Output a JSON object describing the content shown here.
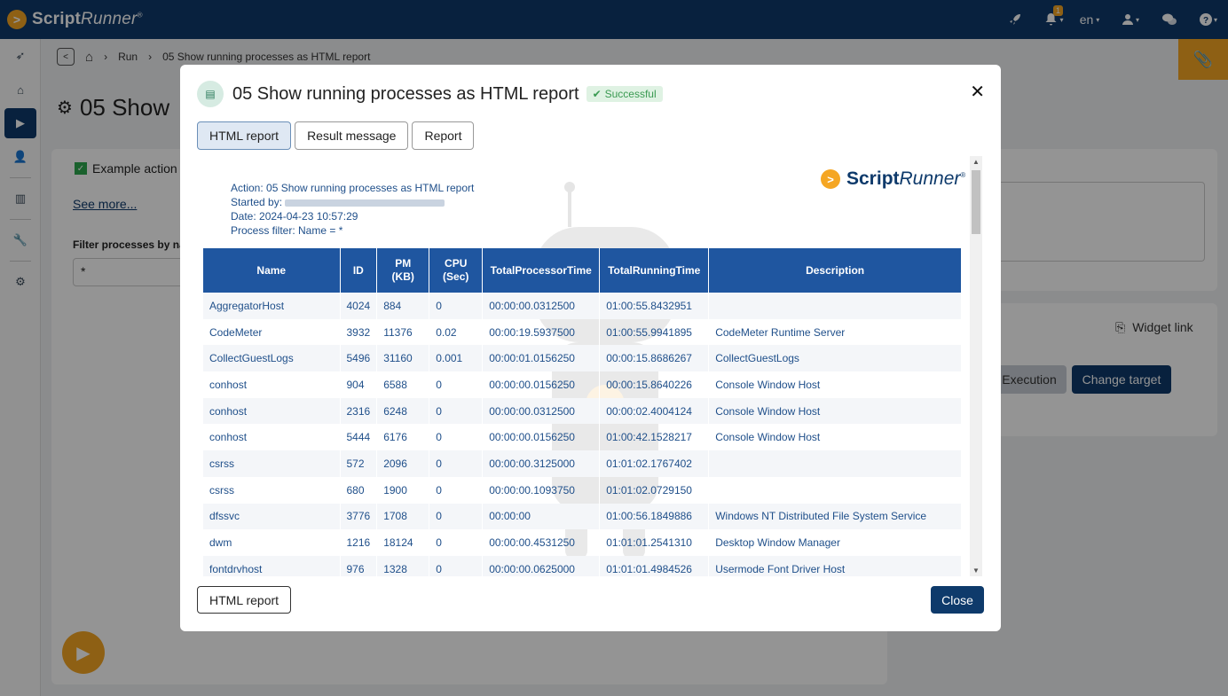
{
  "app": {
    "brand_script": "Script",
    "brand_runner": "Runner",
    "brand_reg": "®"
  },
  "topbar": {
    "notif_count": "1",
    "lang": "en",
    "icons": [
      "rocket-icon",
      "bell-icon",
      "user-icon",
      "chat-icon",
      "help-icon"
    ]
  },
  "sidebar": {
    "items": [
      "rocket-icon",
      "home-icon",
      "run-icon",
      "user-arrow-icon",
      "chart-icon",
      "wrench-icon",
      "gear-icon"
    ]
  },
  "breadcrumb": {
    "home": "⌂",
    "run": "Run",
    "current": "05 Show running processes as HTML report"
  },
  "page": {
    "title": "05 Show",
    "example_action": "Example action -",
    "see_more": "See more...",
    "filter_label": "Filter processes by nar",
    "filter_value": "*",
    "widget_link": "Widget link",
    "execution": "Execution",
    "change_target": "Change target"
  },
  "modal": {
    "title": "05 Show running processes as HTML report",
    "status": "Successful",
    "tabs": [
      "HTML report",
      "Result message",
      "Report"
    ],
    "footer_button": "HTML report",
    "close_button": "Close",
    "report": {
      "action": "Action: 05 Show running processes as HTML report",
      "started_by": "Started by:",
      "date": "Date: 2024-04-23 10:57:29",
      "filter": "Process filter: Name = *",
      "columns": [
        "Name",
        "ID",
        "PM\n(KB)",
        "CPU\n(Sec)",
        "TotalProcessorTime",
        "TotalRunningTime",
        "Description"
      ],
      "rows": [
        [
          "AggregatorHost",
          "4024",
          "884",
          "0",
          "00:00:00.0312500",
          "01:00:55.8432951",
          ""
        ],
        [
          "CodeMeter",
          "3932",
          "11376",
          "0.02",
          "00:00:19.5937500",
          "01:00:55.9941895",
          "CodeMeter Runtime Server"
        ],
        [
          "CollectGuestLogs",
          "5496",
          "31160",
          "0.001",
          "00:00:01.0156250",
          "00:00:15.8686267",
          "CollectGuestLogs"
        ],
        [
          "conhost",
          "904",
          "6588",
          "0",
          "00:00:00.0156250",
          "00:00:15.8640226",
          "Console Window Host"
        ],
        [
          "conhost",
          "2316",
          "6248",
          "0",
          "00:00:00.0312500",
          "00:00:02.4004124",
          "Console Window Host"
        ],
        [
          "conhost",
          "5444",
          "6176",
          "0",
          "00:00:00.0156250",
          "01:00:42.1528217",
          "Console Window Host"
        ],
        [
          "csrss",
          "572",
          "2096",
          "0",
          "00:00:00.3125000",
          "01:01:02.1767402",
          ""
        ],
        [
          "csrss",
          "680",
          "1900",
          "0",
          "00:00:00.1093750",
          "01:01:02.0729150",
          ""
        ],
        [
          "dfssvc",
          "3776",
          "1708",
          "0",
          "00:00:00",
          "01:00:56.1849886",
          "Windows NT Distributed File System Service"
        ],
        [
          "dwm",
          "1216",
          "18124",
          "0",
          "00:00:00.4531250",
          "01:01:01.2541310",
          "Desktop Window Manager"
        ],
        [
          "fontdrvhost",
          "976",
          "1328",
          "0",
          "00:00:00.0625000",
          "01:01:01.4984526",
          "Usermode Font Driver Host"
        ]
      ]
    }
  }
}
